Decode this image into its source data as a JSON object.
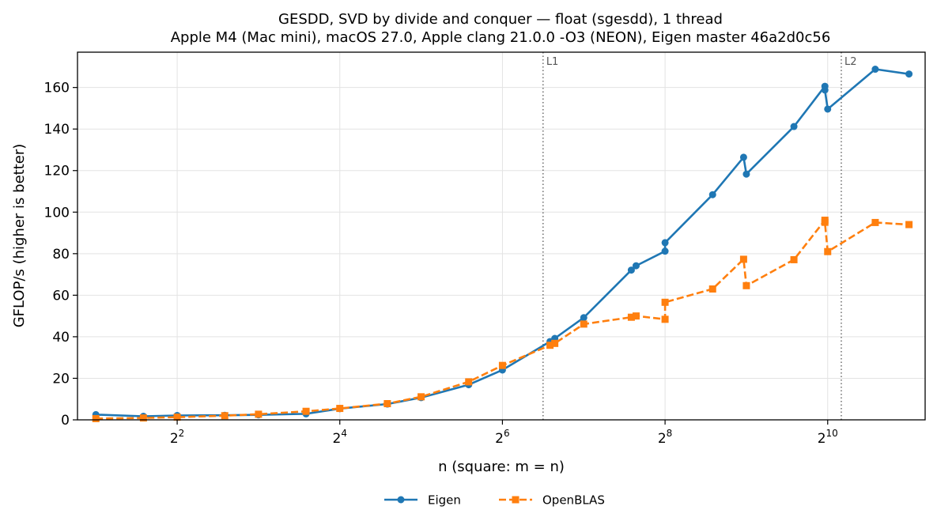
{
  "chart_data": {
    "type": "line",
    "title": "GESDD, SVD by divide and conquer — float (sgesdd), 1 thread",
    "subtitle": "Apple M4 (Mac mini), macOS 27.0, Apple clang 21.0.0 -O3 (NEON), Eigen master 46a2d0c56",
    "xlabel": "n (square: m = n)",
    "ylabel": "GFLOP/s (higher is better)",
    "x_scale": "log2",
    "xlim": [
      1.71,
      2350
    ],
    "ylim": [
      0,
      177
    ],
    "x_ticks": [
      {
        "value": 4,
        "base": "2",
        "exp": "2"
      },
      {
        "value": 16,
        "base": "2",
        "exp": "4"
      },
      {
        "value": 64,
        "base": "2",
        "exp": "6"
      },
      {
        "value": 256,
        "base": "2",
        "exp": "8"
      },
      {
        "value": 1024,
        "base": "2",
        "exp": "10"
      }
    ],
    "y_ticks": [
      {
        "value": 0,
        "label": "0"
      },
      {
        "value": 20,
        "label": "20"
      },
      {
        "value": 40,
        "label": "40"
      },
      {
        "value": 60,
        "label": "60"
      },
      {
        "value": 80,
        "label": "80"
      },
      {
        "value": 100,
        "label": "100"
      },
      {
        "value": 120,
        "label": "120"
      },
      {
        "value": 140,
        "label": "140"
      },
      {
        "value": 160,
        "label": "160"
      }
    ],
    "grid": true,
    "legend_position": "bottom-center",
    "vlines": [
      {
        "label": "L1",
        "x": 90.5,
        "color": "#555555"
      },
      {
        "label": "L2",
        "x": 1150,
        "color": "#555555"
      }
    ],
    "series": [
      {
        "name": "Eigen",
        "color": "#1f77b4",
        "marker": "circle",
        "linestyle": "solid",
        "points": [
          [
            2,
            2.5
          ],
          [
            3,
            1.7
          ],
          [
            4,
            2.1
          ],
          [
            6,
            2.2
          ],
          [
            8,
            2.4
          ],
          [
            12,
            2.9
          ],
          [
            16,
            5.4
          ],
          [
            24,
            7.6
          ],
          [
            32,
            10.7
          ],
          [
            48,
            16.9
          ],
          [
            64,
            24.0
          ],
          [
            96,
            37.7
          ],
          [
            100,
            39.2
          ],
          [
            128,
            49.2
          ],
          [
            192,
            72.1
          ],
          [
            200,
            74.2
          ],
          [
            256,
            81.2
          ],
          [
            256,
            85.3
          ],
          [
            384,
            108.4
          ],
          [
            500,
            126.4
          ],
          [
            512,
            118.3
          ],
          [
            768,
            141.2
          ],
          [
            1000,
            160.6
          ],
          [
            1000,
            158.8
          ],
          [
            1024,
            149.6
          ],
          [
            1536,
            168.8
          ],
          [
            2048,
            166.5
          ]
        ]
      },
      {
        "name": "OpenBLAS",
        "color": "#ff7f0e",
        "marker": "square",
        "linestyle": "dashed",
        "points": [
          [
            2,
            0.6
          ],
          [
            3,
            0.9
          ],
          [
            4,
            1.3
          ],
          [
            6,
            2.0
          ],
          [
            8,
            2.7
          ],
          [
            12,
            4.1
          ],
          [
            16,
            5.5
          ],
          [
            24,
            7.8
          ],
          [
            32,
            11.1
          ],
          [
            48,
            18.3
          ],
          [
            64,
            26.2
          ],
          [
            96,
            35.9
          ],
          [
            100,
            36.8
          ],
          [
            128,
            46.1
          ],
          [
            192,
            49.4
          ],
          [
            200,
            50.0
          ],
          [
            256,
            48.4
          ],
          [
            256,
            56.6
          ],
          [
            384,
            63.0
          ],
          [
            500,
            77.3
          ],
          [
            512,
            64.6
          ],
          [
            768,
            77.1
          ],
          [
            1000,
            96.1
          ],
          [
            1000,
            95.1
          ],
          [
            1024,
            81.0
          ],
          [
            1536,
            95.0
          ],
          [
            2048,
            94.0
          ]
        ]
      }
    ]
  }
}
